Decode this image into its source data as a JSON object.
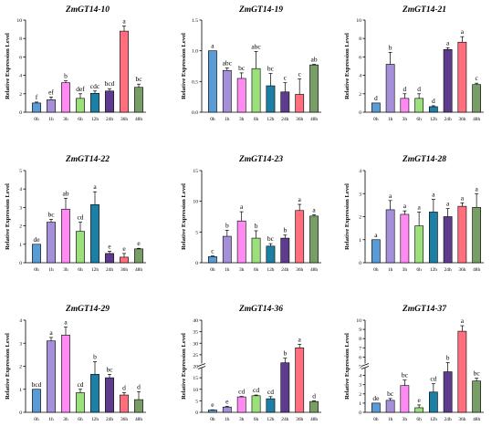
{
  "figure": {
    "colors": [
      "#5b9bd5",
      "#a68fd9",
      "#ff8bf2",
      "#9be07a",
      "#1d7fa3",
      "#5d3c8e",
      "#ff6f7d",
      "#789d66"
    ]
  },
  "chart_data": [
    {
      "type": "bar",
      "title": "ZmGT14-10",
      "ylabel": "Relative Expression Level",
      "categories": [
        "0h",
        "1h",
        "3h",
        "6h",
        "12h",
        "24h",
        "36h",
        "48h"
      ],
      "values": [
        1.0,
        1.35,
        3.2,
        1.5,
        2.05,
        2.3,
        8.8,
        2.7
      ],
      "errors": [
        0.1,
        0.3,
        0.2,
        0.5,
        0.25,
        0.25,
        0.55,
        0.35
      ],
      "letters": [
        "f",
        "ef",
        "b",
        "def",
        "cdc",
        "bcd",
        "a",
        "bc"
      ],
      "ylim": [
        0,
        10
      ],
      "yticks": [
        0,
        2,
        4,
        6,
        8,
        10
      ],
      "ytick_labels": [
        "0",
        "2",
        "4",
        "6",
        "8",
        "10"
      ]
    },
    {
      "type": "bar",
      "title": "ZmGT14-19",
      "ylabel": "Relative Expression Level",
      "categories": [
        "0h",
        "1h",
        "3h",
        "6h",
        "12h",
        "24h",
        "36h",
        "48h"
      ],
      "values": [
        1.0,
        0.68,
        0.55,
        0.71,
        0.43,
        0.33,
        0.29,
        0.77
      ],
      "errors": [
        0.0,
        0.04,
        0.09,
        0.28,
        0.2,
        0.15,
        0.25,
        0.01
      ],
      "letters": [
        "a",
        "abc",
        "bc",
        "abc",
        "bc",
        "c",
        "c",
        "ab"
      ],
      "ylim": [
        0,
        1.5
      ],
      "yticks": [
        0,
        0.5,
        1.0,
        1.5
      ],
      "ytick_labels": [
        "0.0",
        "0.5",
        "1.0",
        "1.5"
      ]
    },
    {
      "type": "bar",
      "title": "ZmGT14-21",
      "ylabel": "Relative Expression Level",
      "categories": [
        "0h",
        "1h",
        "3h",
        "6h",
        "12h",
        "24h",
        "36h",
        "48h"
      ],
      "values": [
        1.0,
        5.2,
        1.5,
        1.5,
        0.6,
        6.8,
        7.6,
        3.0
      ],
      "errors": [
        0.0,
        1.3,
        0.5,
        0.5,
        0.1,
        0.2,
        0.6,
        0.15
      ],
      "letters": [
        "d",
        "b",
        "d",
        "d",
        "d",
        "a",
        "a",
        "c"
      ],
      "ylim": [
        0,
        10
      ],
      "yticks": [
        0,
        2,
        4,
        6,
        8,
        10
      ],
      "ytick_labels": [
        "0",
        "2",
        "4",
        "6",
        "8",
        "10"
      ]
    },
    {
      "type": "bar",
      "title": "ZmGT14-22",
      "ylabel": "Relative Expression Level",
      "categories": [
        "0h",
        "1h",
        "3h",
        "6h",
        "12h",
        "24h",
        "36h",
        "48h"
      ],
      "values": [
        1.0,
        2.2,
        2.9,
        1.7,
        3.15,
        0.5,
        0.3,
        0.75
      ],
      "errors": [
        0.0,
        0.15,
        0.6,
        0.5,
        0.7,
        0.12,
        0.2,
        0.03
      ],
      "letters": [
        "de",
        "bc",
        "ab",
        "cd",
        "a",
        "e",
        "e",
        "e"
      ],
      "ylim": [
        0,
        5
      ],
      "yticks": [
        0,
        1,
        2,
        3,
        4,
        5
      ],
      "ytick_labels": [
        "0",
        "1",
        "2",
        "3",
        "4",
        "5"
      ]
    },
    {
      "type": "bar",
      "title": "ZmGT14-23",
      "ylabel": "Relative Expression Level",
      "categories": [
        "0h",
        "1h",
        "3h",
        "6h",
        "12h",
        "24h",
        "36h",
        "48h"
      ],
      "values": [
        1.0,
        4.3,
        6.8,
        4.0,
        2.7,
        4.0,
        8.5,
        7.6
      ],
      "errors": [
        0.1,
        1.0,
        1.5,
        1.2,
        0.4,
        0.5,
        1.0,
        0.2
      ],
      "letters": [
        "c",
        "b",
        "a",
        "b",
        "bc",
        "b",
        "a",
        "a"
      ],
      "ylim": [
        0,
        15
      ],
      "yticks": [
        0,
        5,
        10,
        15
      ],
      "ytick_labels": [
        "0",
        "5",
        "10",
        "15"
      ]
    },
    {
      "type": "bar",
      "title": "ZmGT14-28",
      "ylabel": "Relative Expression Level",
      "categories": [
        "0h",
        "1h",
        "3h",
        "6h",
        "12h",
        "24h",
        "36h",
        "48h"
      ],
      "values": [
        1.0,
        2.3,
        2.1,
        1.6,
        2.2,
        2.0,
        2.45,
        2.4
      ],
      "errors": [
        0.0,
        0.4,
        0.15,
        0.6,
        0.55,
        0.35,
        0.15,
        0.6
      ],
      "letters": [
        "a",
        "a",
        "a",
        "a",
        "a",
        "a",
        "a",
        "a"
      ],
      "ylim": [
        0,
        4
      ],
      "yticks": [
        0,
        1,
        2,
        3,
        4
      ],
      "ytick_labels": [
        "0",
        "1",
        "2",
        "3",
        "4"
      ]
    },
    {
      "type": "bar",
      "title": "ZmGT14-29",
      "ylabel": "Relative Expression Level",
      "categories": [
        "0h",
        "1h",
        "3h",
        "6h",
        "12h",
        "24h",
        "36h",
        "48h"
      ],
      "values": [
        1.0,
        3.1,
        3.35,
        0.85,
        1.65,
        1.5,
        0.75,
        0.55
      ],
      "errors": [
        0.0,
        0.15,
        0.35,
        0.15,
        0.55,
        0.15,
        0.1,
        0.35
      ],
      "letters": [
        "bcd",
        "a",
        "a",
        "cd",
        "b",
        "bc",
        "d",
        "d"
      ],
      "ylim": [
        0,
        4
      ],
      "yticks": [
        0,
        1,
        2,
        3,
        4
      ],
      "ytick_labels": [
        "0",
        "1",
        "2",
        "3",
        "4"
      ]
    },
    {
      "type": "bar",
      "title": "ZmGT14-36",
      "ylabel": "Relative Expression Level",
      "categories": [
        "0h",
        "1h",
        "3h",
        "6h",
        "12h",
        "24h",
        "36h",
        "48h"
      ],
      "values": [
        1.0,
        2.3,
        6.7,
        7.2,
        5.9,
        21.5,
        28.0,
        4.7
      ],
      "errors": [
        0.1,
        0.3,
        0.2,
        0.3,
        0.9,
        2.0,
        1.5,
        0.3
      ],
      "letters": [
        "e",
        "e",
        "cd",
        "cd",
        "cd",
        "b",
        "a",
        "d"
      ],
      "ylim": [
        0,
        40
      ],
      "yticks": [
        0,
        5,
        10,
        15,
        20,
        25,
        30,
        35,
        40
      ],
      "ytick_labels": [
        "0",
        "5",
        "10",
        "15",
        "20",
        "25",
        "30",
        "35",
        "40"
      ],
      "axis_break": true
    },
    {
      "type": "bar",
      "title": "ZmGT14-37",
      "ylabel": "Relative Expression Level",
      "categories": [
        "0h",
        "1h",
        "3h",
        "6h",
        "12h",
        "24h",
        "36h",
        "48h"
      ],
      "values": [
        1.0,
        1.3,
        2.9,
        0.5,
        2.2,
        4.4,
        8.8,
        3.4
      ],
      "errors": [
        0.0,
        0.2,
        0.6,
        0.3,
        0.9,
        1.0,
        0.6,
        0.3
      ],
      "letters": [
        "de",
        "bc",
        "bc",
        "e",
        "cd",
        "b",
        "a",
        "bc"
      ],
      "ylim": [
        0,
        10
      ],
      "yticks": [
        0,
        1,
        2,
        3,
        4,
        5,
        6,
        7,
        8,
        9,
        10
      ],
      "ytick_labels": [
        "0",
        "1",
        "2",
        "3",
        "4",
        "5",
        "6",
        "7",
        "8",
        "9",
        "10"
      ],
      "axis_break": true
    }
  ]
}
